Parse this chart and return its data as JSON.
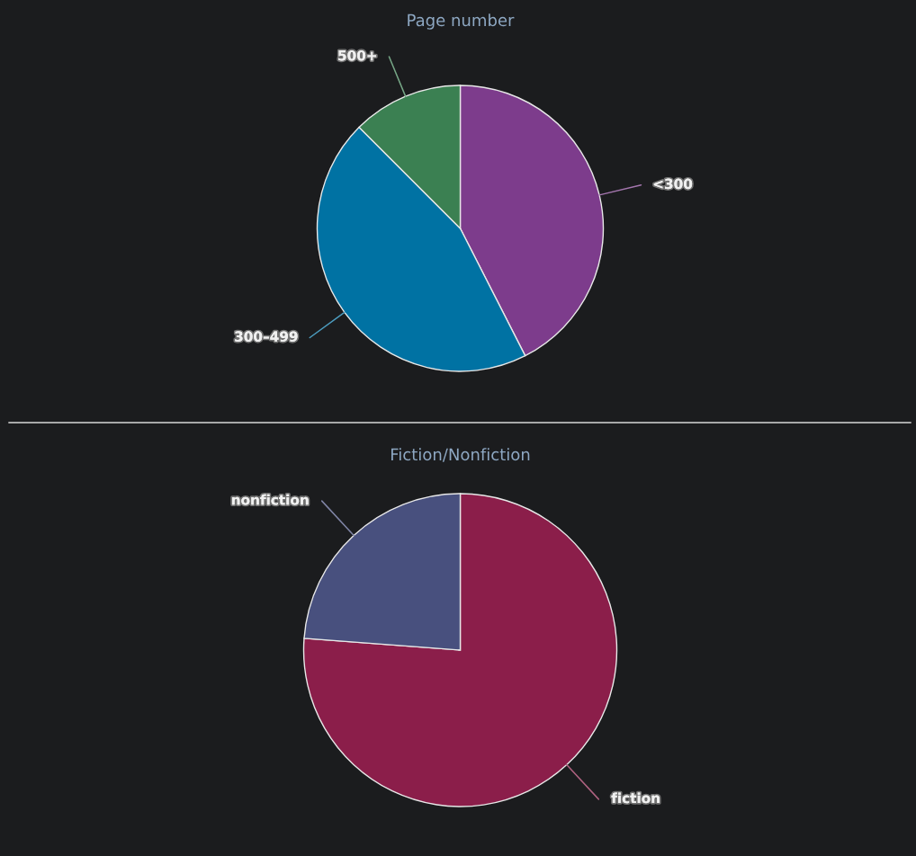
{
  "chart_data": [
    {
      "type": "pie",
      "title": "Page number",
      "categories": [
        "<300",
        "300–499",
        "500+"
      ],
      "values": [
        42.5,
        45,
        12.5
      ],
      "colors": [
        "#7d3c8c",
        "#0072a3",
        "#3b8052"
      ]
    },
    {
      "type": "pie",
      "title": "Fiction/Nonfiction",
      "categories": [
        "fiction",
        "nonfiction"
      ],
      "values": [
        76.2,
        23.8
      ],
      "colors": [
        "#8b1e4a",
        "#48507e"
      ]
    }
  ]
}
